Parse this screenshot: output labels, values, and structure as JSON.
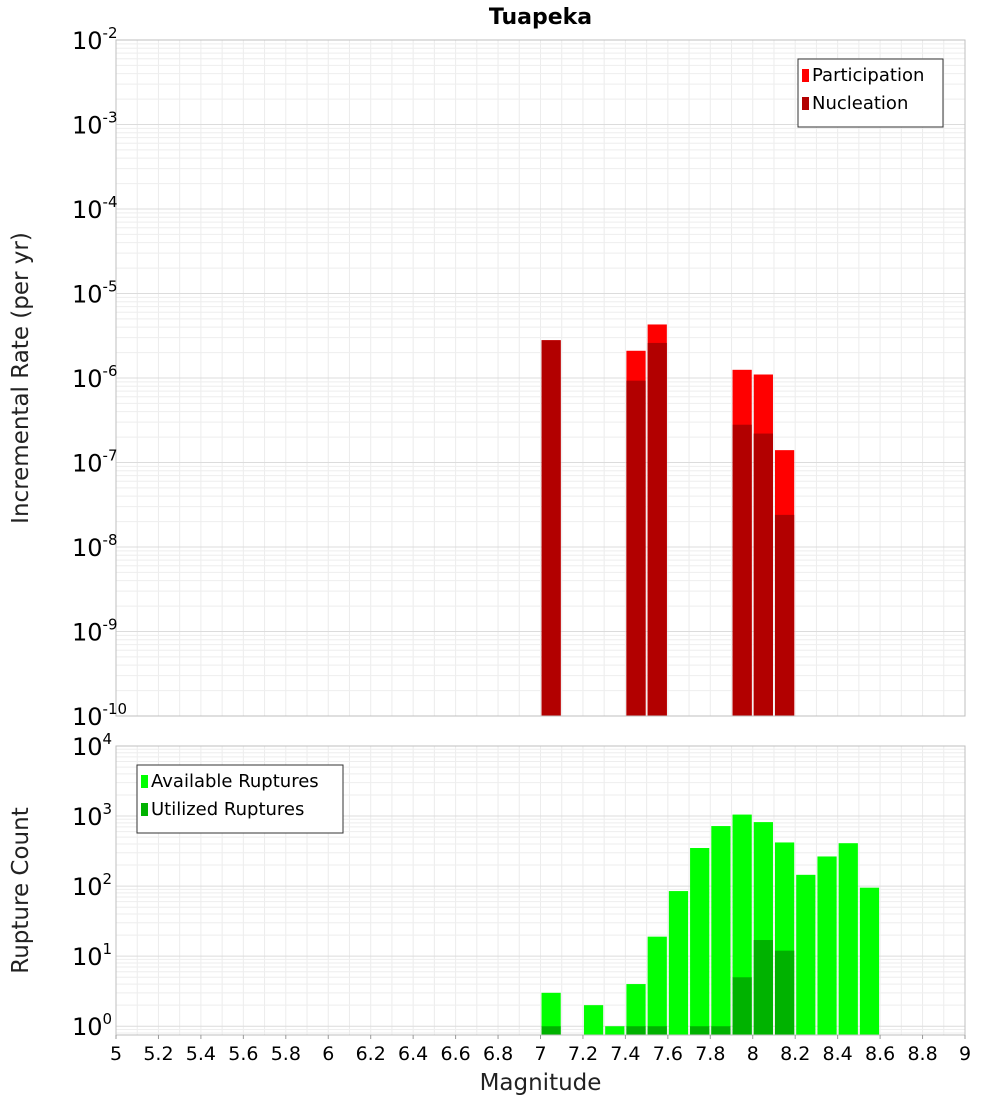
{
  "chart_data": [
    {
      "type": "bar",
      "title": "Tuapeka",
      "xlabel": "",
      "ylabel": "Incremental Rate (per yr)",
      "yscale": "log",
      "ylim": [
        1e-10,
        0.01
      ],
      "xlim": [
        5,
        9
      ],
      "bin_width": 0.1,
      "y_ticks": [
        {
          "base": "10",
          "exp": "-10"
        },
        {
          "base": "10",
          "exp": "-9"
        },
        {
          "base": "10",
          "exp": "-8"
        },
        {
          "base": "10",
          "exp": "-7"
        },
        {
          "base": "10",
          "exp": "-6"
        },
        {
          "base": "10",
          "exp": "-5"
        },
        {
          "base": "10",
          "exp": "-4"
        },
        {
          "base": "10",
          "exp": "-3"
        },
        {
          "base": "10",
          "exp": "-2"
        }
      ],
      "legend_position": "top-right",
      "grid": true,
      "series": [
        {
          "name": "Participation",
          "color": "#ff0000",
          "points": [
            {
              "x": 7.05,
              "y": 2.8e-06
            },
            {
              "x": 7.45,
              "y": 2.1e-06
            },
            {
              "x": 7.55,
              "y": 4.3e-06
            },
            {
              "x": 7.95,
              "y": 1.25e-06
            },
            {
              "x": 8.05,
              "y": 1.1e-06
            },
            {
              "x": 8.15,
              "y": 1.4e-07
            }
          ]
        },
        {
          "name": "Nucleation",
          "color": "#b20000",
          "points": [
            {
              "x": 7.05,
              "y": 2.8e-06
            },
            {
              "x": 7.45,
              "y": 9.3e-07
            },
            {
              "x": 7.55,
              "y": 2.6e-06
            },
            {
              "x": 7.95,
              "y": 2.8e-07
            },
            {
              "x": 8.05,
              "y": 2.2e-07
            },
            {
              "x": 8.15,
              "y": 2.4e-08
            }
          ]
        }
      ]
    },
    {
      "type": "bar",
      "title": "",
      "xlabel": "Magnitude",
      "ylabel": "Rupture Count",
      "yscale": "log",
      "ylim": [
        0.75,
        10000
      ],
      "xlim": [
        5,
        9
      ],
      "bin_width": 0.1,
      "x_ticks": [
        "5",
        "5.2",
        "5.4",
        "5.6",
        "5.8",
        "6",
        "6.2",
        "6.4",
        "6.6",
        "6.8",
        "7",
        "7.2",
        "7.4",
        "7.6",
        "7.8",
        "8",
        "8.2",
        "8.4",
        "8.6",
        "8.8",
        "9"
      ],
      "y_ticks": [
        {
          "base": "10",
          "exp": "0"
        },
        {
          "base": "10",
          "exp": "1"
        },
        {
          "base": "10",
          "exp": "2"
        },
        {
          "base": "10",
          "exp": "3"
        },
        {
          "base": "10",
          "exp": "4"
        }
      ],
      "legend_position": "top-left",
      "grid": true,
      "series": [
        {
          "name": "Available Ruptures",
          "color": "#00ff00",
          "points": [
            {
              "x": 7.05,
              "y": 3
            },
            {
              "x": 7.25,
              "y": 2
            },
            {
              "x": 7.35,
              "y": 1
            },
            {
              "x": 7.45,
              "y": 4
            },
            {
              "x": 7.55,
              "y": 19
            },
            {
              "x": 7.65,
              "y": 85
            },
            {
              "x": 7.75,
              "y": 350
            },
            {
              "x": 7.85,
              "y": 720
            },
            {
              "x": 7.95,
              "y": 1050
            },
            {
              "x": 8.05,
              "y": 820
            },
            {
              "x": 8.15,
              "y": 420
            },
            {
              "x": 8.25,
              "y": 145
            },
            {
              "x": 8.35,
              "y": 265
            },
            {
              "x": 8.45,
              "y": 410
            },
            {
              "x": 8.55,
              "y": 95
            }
          ]
        },
        {
          "name": "Utilized Ruptures",
          "color": "#00b200",
          "points": [
            {
              "x": 7.05,
              "y": 1
            },
            {
              "x": 7.45,
              "y": 1
            },
            {
              "x": 7.55,
              "y": 1
            },
            {
              "x": 7.75,
              "y": 1
            },
            {
              "x": 7.85,
              "y": 1
            },
            {
              "x": 7.95,
              "y": 5
            },
            {
              "x": 8.05,
              "y": 17
            },
            {
              "x": 8.15,
              "y": 12
            }
          ]
        }
      ]
    }
  ]
}
